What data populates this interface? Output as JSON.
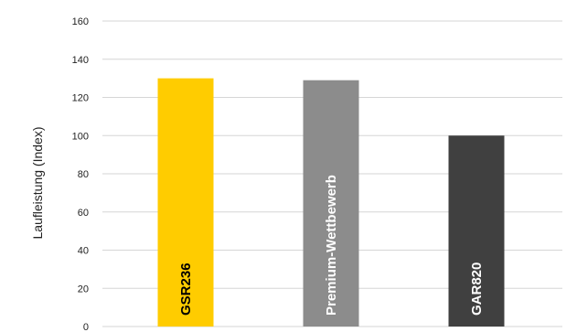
{
  "chart_data": {
    "type": "bar",
    "categories": [
      "GSR236",
      "Premium-Wettbewerb",
      "GAR820"
    ],
    "values": [
      130,
      129,
      100
    ],
    "colors": [
      "#FFCC00",
      "#8C8C8C",
      "#404040"
    ],
    "label_colors": [
      "#000000",
      "#FFFFFF",
      "#FFFFFF"
    ],
    "ylabel": "Laufleistung (Index)",
    "ylim": [
      0,
      160
    ],
    "yticks": [
      "0",
      "20",
      "40",
      "60",
      "80",
      "100",
      "120",
      "140",
      "160"
    ],
    "grid": true,
    "legend": "none"
  }
}
